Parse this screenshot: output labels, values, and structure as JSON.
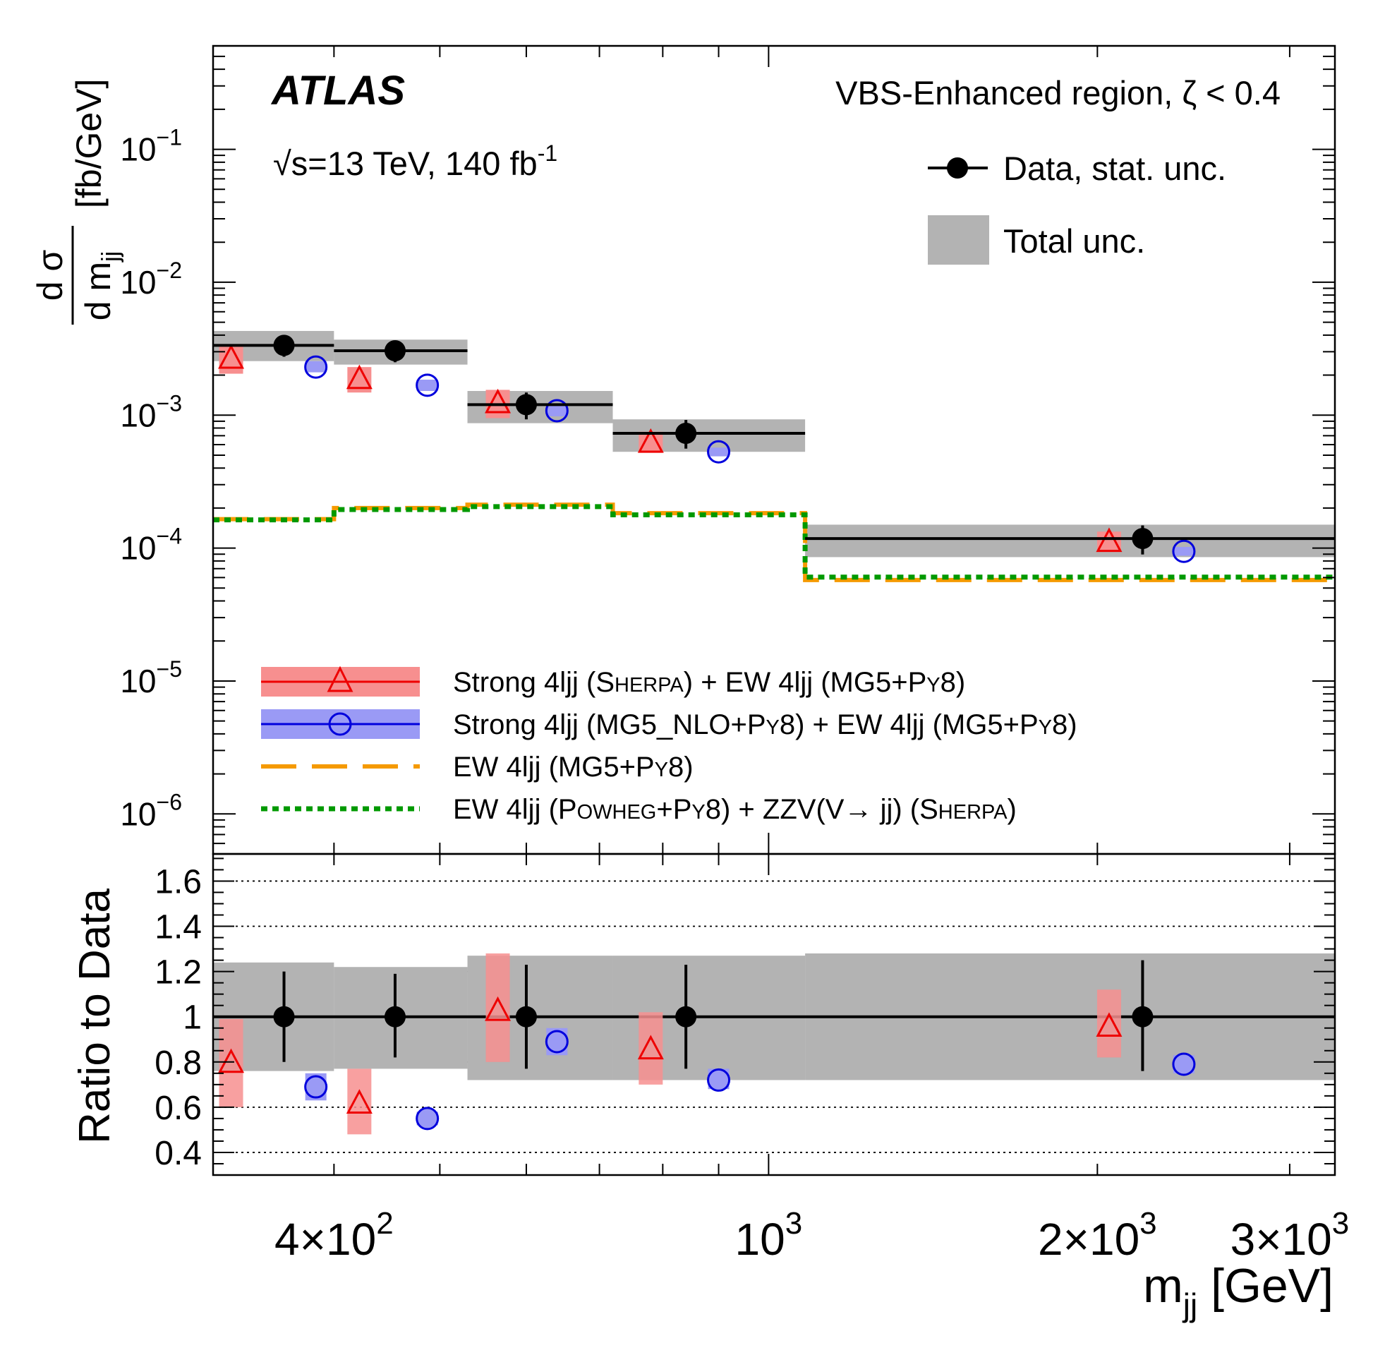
{
  "chart_data": {
    "type": "scatter",
    "title": "",
    "experiment": "ATLAS",
    "energy_label": "√s=13 TeV,  140 fb",
    "lumi_exponent": "-1",
    "region_label": "VBS-Enhanced region, ζ < 0.4",
    "x_axis": {
      "label": "m",
      "label_sub": "jj",
      "label_unit": " [GeV]",
      "scale": "log",
      "range": [
        310,
        3300
      ],
      "tick_labels": [
        {
          "value": 400,
          "mantissa": "4×10",
          "exp": "2"
        },
        {
          "value": 1000,
          "mantissa": "10",
          "exp": "3"
        },
        {
          "value": 2000,
          "mantissa": "2×10",
          "exp": "3"
        },
        {
          "value": 3000,
          "mantissa": "3×10",
          "exp": "3"
        }
      ]
    },
    "top_panel": {
      "y_axis": {
        "label_num": "d σ",
        "label_den": "d m",
        "label_den_sub": "jj",
        "label_unit": "[fb/GeV]",
        "scale": "log",
        "range": [
          5e-07,
          0.6
        ],
        "tick_labels": [
          {
            "value": 0.1,
            "base": "10",
            "exp": "−1"
          },
          {
            "value": 0.01,
            "base": "10",
            "exp": "−2"
          },
          {
            "value": 0.001,
            "base": "10",
            "exp": "−3"
          },
          {
            "value": 0.0001,
            "base": "10",
            "exp": "−4"
          },
          {
            "value": 1e-05,
            "base": "10",
            "exp": "−5"
          },
          {
            "value": 1e-06,
            "base": "10",
            "exp": "−6"
          }
        ]
      },
      "bins": [
        {
          "low": 310,
          "high": 400,
          "data": 0.00335,
          "data_stat": [
            0.00275,
            0.004
          ],
          "total_unc": [
            0.00255,
            0.0043
          ],
          "sherpa": 0.0027,
          "sherpa_unc": [
            0.00205,
            0.0033
          ],
          "mg5": 0.0023,
          "mg5_unc": [
            0.0021,
            0.00255
          ],
          "ew_mg5": 0.000165,
          "ew_powheg": 0.000163
        },
        {
          "low": 400,
          "high": 530,
          "data": 0.00305,
          "data_stat": [
            0.0025,
            0.0036
          ],
          "total_unc": [
            0.0024,
            0.0037
          ],
          "sherpa": 0.0019,
          "sherpa_unc": [
            0.00148,
            0.0023
          ],
          "mg5": 0.00168,
          "mg5_unc": [
            0.00152,
            0.00185
          ],
          "ew_mg5": 0.0002,
          "ew_powheg": 0.000195
        },
        {
          "low": 530,
          "high": 720,
          "data": 0.0012,
          "data_stat": [
            0.00093,
            0.00148
          ],
          "total_unc": [
            0.00087,
            0.00152
          ],
          "sherpa": 0.00125,
          "sherpa_unc": [
            0.00095,
            0.00155
          ],
          "mg5": 0.00108,
          "mg5_unc": [
            0.00098,
            0.00118
          ],
          "ew_mg5": 0.000212,
          "ew_powheg": 0.000205
        },
        {
          "low": 720,
          "high": 1080,
          "data": 0.00073,
          "data_stat": [
            0.00056,
            0.00092
          ],
          "total_unc": [
            0.00053,
            0.00093
          ],
          "sherpa": 0.00063,
          "sherpa_unc": [
            0.00052,
            0.00075
          ],
          "mg5": 0.00053,
          "mg5_unc": [
            0.00049,
            0.00057
          ],
          "ew_mg5": 0.000183,
          "ew_powheg": 0.000178
        },
        {
          "low": 1080,
          "high": 3300,
          "data": 0.000118,
          "data_stat": [
            8.95e-05,
            0.000148
          ],
          "total_unc": [
            8.55e-05,
            0.00015
          ],
          "sherpa": 0.000113,
          "sherpa_unc": [
            9.35e-05,
            0.000133
          ],
          "mg5": 9.45e-05,
          "mg5_unc": [
            8.75e-05,
            0.000102
          ],
          "ew_mg5": 5.75e-05,
          "ew_powheg": 6.05e-05
        }
      ],
      "marker_x": {
        "data": [
          360,
          455,
          600,
          840,
          2200
        ],
        "sherpa": [
          322,
          422,
          565,
          780,
          2050
        ],
        "mg5": [
          385,
          487,
          640,
          900,
          2400
        ]
      }
    },
    "ratio_panel": {
      "y_axis": {
        "label": "Ratio to Data",
        "scale": "linear",
        "range": [
          0.3,
          1.72
        ],
        "tick_labels": [
          "1.6",
          "1.4",
          "1.2",
          "1",
          "0.8",
          "0.6",
          "0.4"
        ],
        "tick_values": [
          1.6,
          1.4,
          1.2,
          1.0,
          0.8,
          0.6,
          0.4
        ],
        "gridlines": [
          0.4,
          0.6,
          0.8,
          1.2,
          1.4,
          1.6
        ]
      },
      "data_stat": [
        [
          0.8,
          1.2
        ],
        [
          0.82,
          1.19
        ],
        [
          0.77,
          1.23
        ],
        [
          0.77,
          1.23
        ],
        [
          0.76,
          1.25
        ]
      ],
      "total_unc": [
        [
          0.76,
          1.24
        ],
        [
          0.77,
          1.22
        ],
        [
          0.72,
          1.27
        ],
        [
          0.72,
          1.27
        ],
        [
          0.72,
          1.28
        ]
      ],
      "sherpa": [
        0.8,
        0.62,
        1.03,
        0.86,
        0.96
      ],
      "sherpa_unc": [
        [
          0.6,
          0.99
        ],
        [
          0.48,
          0.77
        ],
        [
          0.8,
          1.28
        ],
        [
          0.7,
          1.02
        ],
        [
          0.82,
          1.12
        ]
      ],
      "mg5": [
        0.69,
        0.55,
        0.89,
        0.72,
        0.79
      ],
      "mg5_unc": [
        [
          0.63,
          0.75
        ],
        [
          0.52,
          0.58
        ],
        [
          0.83,
          0.95
        ],
        [
          0.68,
          0.77
        ],
        [
          0.75,
          0.83
        ]
      ]
    },
    "legend": {
      "placement_upper": "top-right",
      "placement_lower": "bottom-left",
      "data": "Data, stat. unc.",
      "total": "Total unc.",
      "sherpa_pre": "Strong 4ljj (",
      "sherpa_sc1": "S",
      "sherpa_sc1s": "HERPA",
      "sherpa_mid": ") + EW 4ljj (MG5+P",
      "sherpa_sc2": "Y",
      "sherpa_post": "8)",
      "mg5_pre": "Strong 4ljj (MG5_NLO+P",
      "mg5_sc1": "Y",
      "mg5_mid": "8) + EW 4ljj (MG5+P",
      "mg5_sc2": "Y",
      "mg5_post": "8)",
      "ew_pre": "EW 4ljj (MG5+P",
      "ew_sc": "Y",
      "ew_post": "8)",
      "pow_pre": "EW 4ljj (P",
      "pow_sc1": "OWHEG",
      "pow_mid1": "+P",
      "pow_sc2": "Y",
      "pow_mid2": "8) + ZZV(V→ jj) (S",
      "pow_sc3": "HERPA",
      "pow_post": ")"
    },
    "colors": {
      "data": "#000000",
      "total_unc": "#b3b3b3",
      "sherpa": "#ee0000",
      "sherpa_band": "#f78f8f",
      "mg5": "#0000dd",
      "mg5_band": "#9a9af5",
      "ew_mg5": "#f59a00",
      "ew_powheg": "#009900"
    }
  }
}
